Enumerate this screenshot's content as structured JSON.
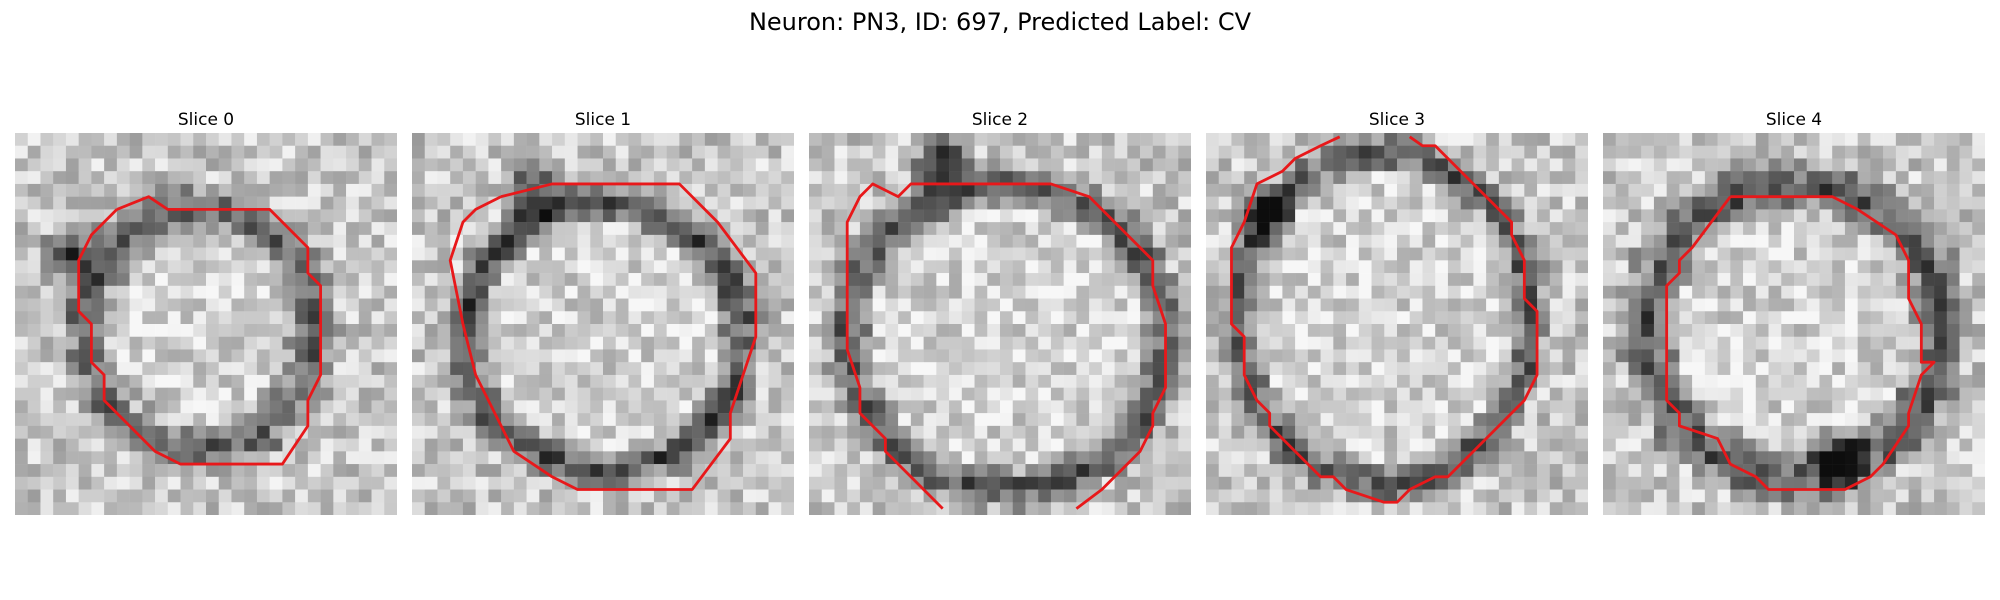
{
  "figure": {
    "title": "Neuron: PN3, ID: 697, Predicted Label: CV"
  },
  "panels": [
    {
      "title": "Slice 0"
    },
    {
      "title": "Slice 1"
    },
    {
      "title": "Slice 2"
    },
    {
      "title": "Slice 3"
    },
    {
      "title": "Slice 4"
    }
  ],
  "colors": {
    "contour": "#e8181a",
    "background": "#ffffff"
  }
}
